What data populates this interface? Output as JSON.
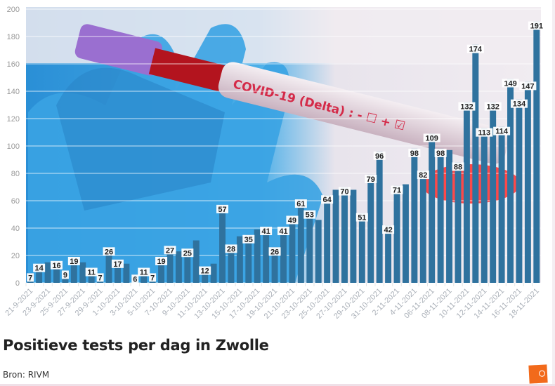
{
  "chart_data": {
    "type": "bar",
    "title": "Positieve tests per dag in Zwolle",
    "source": "Bron: RIVM",
    "xlabel": "",
    "ylabel": "",
    "ylim": [
      0,
      200
    ],
    "yticks": [
      0,
      20,
      40,
      60,
      80,
      100,
      120,
      140,
      160,
      180,
      200
    ],
    "grid": true,
    "bar_color": "#2f729e",
    "x_tick_labels": [
      "21-9-2021",
      "23-9-2021",
      "25-9-2021",
      "27-9-2021",
      "29-9-2021",
      "1-10-2021",
      "3-10-2021",
      "5-10-2021",
      "7-10-2021",
      "9-10-2021",
      "11-10-2021",
      "13-10-2021",
      "15-10-2021",
      "17-10-2021",
      "19-10-2021",
      "21-10-2021",
      "23-10-2021",
      "25-10-2021",
      "27-10-2021",
      "29-10-2021",
      "31-10-2021",
      "2-11-2021",
      "4-11-2021",
      "06-11-2021",
      "08-11-2021",
      "10-11-2021",
      "12-11-2021",
      "14-11-2021",
      "16-11-2021",
      "18-11-2021"
    ],
    "values": [
      7,
      14,
      15,
      16,
      9,
      19,
      15,
      11,
      7,
      26,
      17,
      14,
      6,
      11,
      7,
      19,
      27,
      23,
      25,
      31,
      12,
      14,
      57,
      28,
      34,
      35,
      39,
      41,
      26,
      41,
      49,
      61,
      53,
      46,
      64,
      68,
      70,
      68,
      51,
      79,
      96,
      42,
      71,
      72,
      98,
      82,
      109,
      98,
      97,
      88,
      132,
      174,
      113,
      132,
      114,
      149,
      134,
      147,
      191
    ],
    "show_label": [
      true,
      true,
      false,
      true,
      true,
      true,
      false,
      true,
      true,
      true,
      true,
      false,
      true,
      true,
      true,
      true,
      true,
      false,
      true,
      false,
      true,
      false,
      true,
      true,
      false,
      true,
      false,
      true,
      true,
      true,
      true,
      true,
      true,
      false,
      true,
      false,
      true,
      false,
      true,
      true,
      true,
      true,
      true,
      false,
      true,
      true,
      true,
      true,
      false,
      true,
      true,
      true,
      true,
      true,
      true,
      true,
      true,
      true,
      true
    ]
  },
  "logo": "logo"
}
